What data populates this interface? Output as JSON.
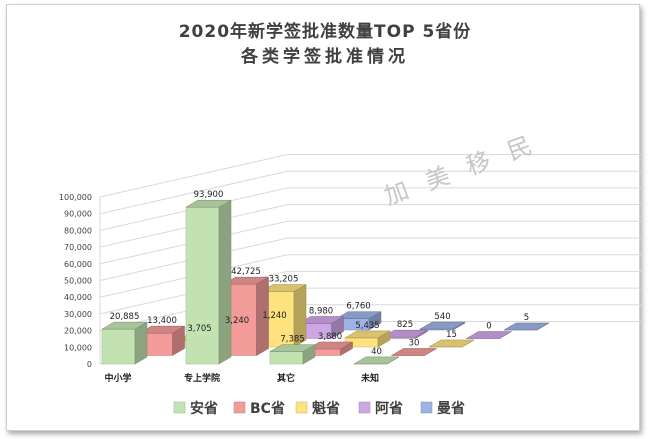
{
  "title_line1": "2020年新学签批准数量TOP 5省份",
  "title_line2": "各类学签批准情况",
  "watermark": "加 美 移 民",
  "chart_data": {
    "type": "bar",
    "subtype": "3d-column",
    "title": "2020年新学签批准数量TOP 5省份 各类学签批准情况",
    "categories": [
      "中小学",
      "专上学院",
      "其它",
      "未知"
    ],
    "ylim": [
      0,
      100000
    ],
    "y_ticks": [
      "0",
      "10,000",
      "20,000",
      "30,000",
      "40,000",
      "50,000",
      "60,000",
      "70,000",
      "80,000",
      "90,000",
      "100,000"
    ],
    "grid": true,
    "legend_position": "bottom",
    "series": [
      {
        "name": "安省",
        "color": "#c2e3b1",
        "values": [
          20885,
          93900,
          7385,
          40
        ],
        "labels": [
          "20,885",
          "93,900",
          "7,385",
          "40"
        ]
      },
      {
        "name": "BC省",
        "color": "#f29b99",
        "values": [
          13400,
          42725,
          3880,
          30
        ],
        "labels": [
          "13,400",
          "42,725",
          "3,880",
          "30"
        ]
      },
      {
        "name": "魁省",
        "color": "#fde27e",
        "values": [
          3705,
          33205,
          5435,
          15
        ],
        "labels": [
          "3,705",
          "33,205",
          "5,435",
          "15"
        ]
      },
      {
        "name": "阿省",
        "color": "#cea6e6",
        "values": [
          3240,
          8980,
          825,
          0
        ],
        "labels": [
          "3,240",
          "8,980",
          "825",
          "0"
        ]
      },
      {
        "name": "曼省",
        "color": "#9cb3e3",
        "values": [
          1240,
          6760,
          540,
          5
        ],
        "labels": [
          "1,240",
          "6,760",
          "540",
          "5"
        ]
      }
    ]
  }
}
